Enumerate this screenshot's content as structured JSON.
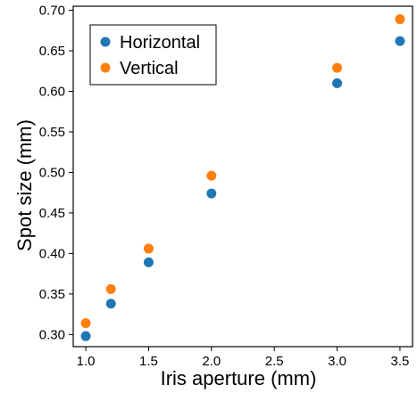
{
  "chart_data": {
    "type": "scatter",
    "xlabel": "Iris aperture (mm)",
    "ylabel": "Spot size (mm)",
    "xlim": [
      0.9,
      3.6
    ],
    "ylim": [
      0.285,
      0.705
    ],
    "xticks": [
      1.0,
      1.5,
      2.0,
      2.5,
      3.0,
      3.5
    ],
    "xtick_labels": [
      "1.0",
      "1.5",
      "2.0",
      "2.5",
      "3.0",
      "3.5"
    ],
    "yticks": [
      0.3,
      0.35,
      0.4,
      0.45,
      0.5,
      0.55,
      0.6,
      0.65,
      0.7
    ],
    "ytick_labels": [
      "0.30",
      "0.35",
      "0.40",
      "0.45",
      "0.50",
      "0.55",
      "0.60",
      "0.65",
      "0.70"
    ],
    "grid": false,
    "legend_position": "top-left",
    "series": [
      {
        "name": "Horizontal",
        "color": "#1f77b4",
        "x": [
          1.0,
          1.2,
          1.5,
          2.0,
          3.0,
          3.5
        ],
        "y": [
          0.298,
          0.338,
          0.389,
          0.474,
          0.61,
          0.662
        ]
      },
      {
        "name": "Vertical",
        "color": "#ff7f0e",
        "x": [
          1.0,
          1.2,
          1.5,
          2.0,
          3.0,
          3.5
        ],
        "y": [
          0.314,
          0.356,
          0.406,
          0.496,
          0.629,
          0.689
        ]
      }
    ]
  }
}
